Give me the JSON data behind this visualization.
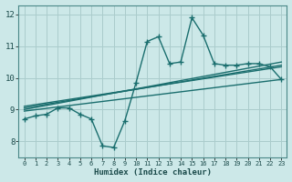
{
  "xlabel": "Humidex (Indice chaleur)",
  "background_color": "#cce8e8",
  "grid_color": "#aacccc",
  "line_color": "#1a6e6e",
  "xlim": [
    -0.5,
    23.5
  ],
  "ylim": [
    7.5,
    12.3
  ],
  "xticks": [
    0,
    1,
    2,
    3,
    4,
    5,
    6,
    7,
    8,
    9,
    10,
    11,
    12,
    13,
    14,
    15,
    16,
    17,
    18,
    19,
    20,
    21,
    22,
    23
  ],
  "yticks": [
    8,
    9,
    10,
    11,
    12
  ],
  "line1_x": [
    0,
    1,
    2,
    3,
    4,
    5,
    6,
    7,
    8,
    9,
    10,
    11,
    12,
    13,
    14,
    15,
    16,
    17,
    18,
    19,
    20,
    21,
    22,
    23
  ],
  "line1_y": [
    8.7,
    8.8,
    8.85,
    9.05,
    9.05,
    8.85,
    8.7,
    7.85,
    7.8,
    8.65,
    9.85,
    11.15,
    11.3,
    10.45,
    10.5,
    11.9,
    11.35,
    10.45,
    10.4,
    10.4,
    10.45,
    10.45,
    10.35,
    9.95
  ],
  "line2_x": [
    0,
    23
  ],
  "line2_y": [
    9.0,
    10.5
  ],
  "line3_x": [
    0,
    23
  ],
  "line3_y": [
    9.05,
    10.4
  ],
  "line4_x": [
    0,
    23
  ],
  "line4_y": [
    9.1,
    10.35
  ],
  "line5_x": [
    0,
    23
  ],
  "line5_y": [
    8.95,
    9.95
  ],
  "marker_size": 4,
  "line_width": 1.0
}
